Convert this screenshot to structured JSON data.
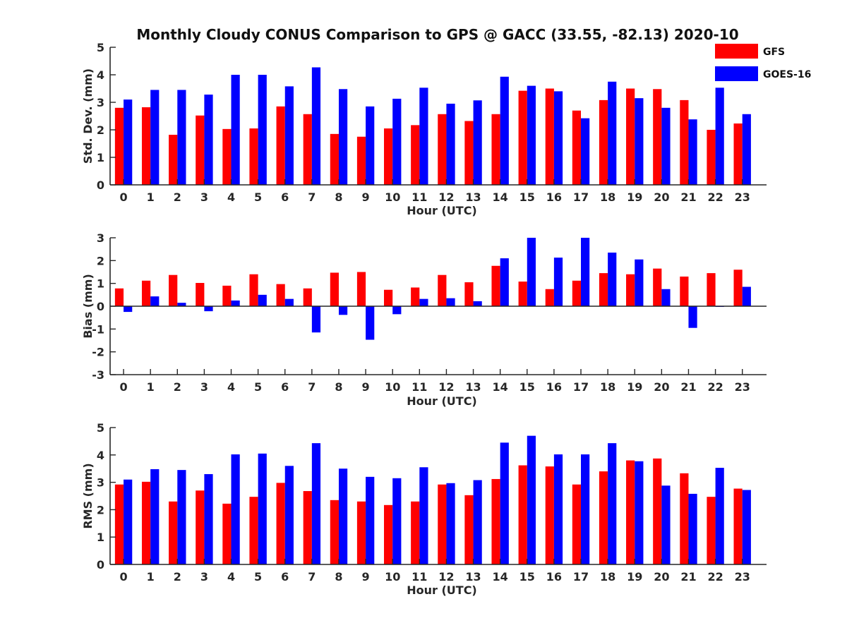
{
  "title": "Monthly Cloudy CONUS Comparison to GPS @ GACC (33.55, -82.13) 2020-10",
  "legend": {
    "position": "top-right",
    "items": [
      {
        "name": "GFS",
        "color": "#ff0000"
      },
      {
        "name": "GOES-16",
        "color": "#0000ff"
      }
    ]
  },
  "chart_data": [
    {
      "type": "bar",
      "xlabel": "Hour (UTC)",
      "ylabel": "Std. Dev. (mm)",
      "ylim": [
        0,
        5
      ],
      "yticks": [
        "0",
        "1",
        "2",
        "3",
        "4",
        "5"
      ],
      "categories": [
        "0",
        "1",
        "2",
        "3",
        "4",
        "5",
        "6",
        "7",
        "8",
        "9",
        "10",
        "11",
        "12",
        "13",
        "14",
        "15",
        "16",
        "17",
        "18",
        "19",
        "20",
        "21",
        "22",
        "23"
      ],
      "series": [
        {
          "name": "GFS",
          "color": "#ff0000",
          "values": [
            2.8,
            2.82,
            1.82,
            2.52,
            2.03,
            2.05,
            2.85,
            2.57,
            1.85,
            1.75,
            2.05,
            2.17,
            2.57,
            2.32,
            2.57,
            3.42,
            3.5,
            2.7,
            3.08,
            3.5,
            3.48,
            3.08,
            2.0,
            2.23
          ]
        },
        {
          "name": "GOES-16",
          "color": "#0000ff",
          "values": [
            3.1,
            3.45,
            3.45,
            3.28,
            4.0,
            4.0,
            3.58,
            4.27,
            3.48,
            2.85,
            3.13,
            3.53,
            2.95,
            3.07,
            3.93,
            3.6,
            3.4,
            2.42,
            3.75,
            3.15,
            2.8,
            2.38,
            3.53,
            2.57
          ]
        }
      ]
    },
    {
      "type": "bar",
      "xlabel": "Hour (UTC)",
      "ylabel": "Bias (mm)",
      "ylim": [
        -3,
        3
      ],
      "yticks": [
        "-3",
        "-2",
        "-1",
        "0",
        "1",
        "2",
        "3"
      ],
      "categories": [
        "0",
        "1",
        "2",
        "3",
        "4",
        "5",
        "6",
        "7",
        "8",
        "9",
        "10",
        "11",
        "12",
        "13",
        "14",
        "15",
        "16",
        "17",
        "18",
        "19",
        "20",
        "21",
        "22",
        "23"
      ],
      "series": [
        {
          "name": "GFS",
          "color": "#ff0000",
          "values": [
            0.78,
            1.12,
            1.37,
            1.02,
            0.9,
            1.4,
            0.97,
            0.78,
            1.47,
            1.5,
            0.72,
            0.82,
            1.37,
            1.05,
            1.77,
            1.08,
            0.75,
            1.12,
            1.45,
            1.4,
            1.65,
            1.3,
            1.45,
            1.6
          ]
        },
        {
          "name": "GOES-16",
          "color": "#0000ff",
          "values": [
            -0.25,
            0.43,
            0.15,
            -0.22,
            0.25,
            0.5,
            0.32,
            -1.15,
            -0.38,
            -1.47,
            -0.35,
            0.32,
            0.35,
            0.22,
            2.1,
            3.0,
            2.13,
            3.0,
            2.35,
            2.05,
            0.75,
            -0.95,
            -0.03,
            0.85
          ]
        }
      ]
    },
    {
      "type": "bar",
      "xlabel": "Hour (UTC)",
      "ylabel": "RMS (mm)",
      "ylim": [
        0,
        5
      ],
      "yticks": [
        "0",
        "1",
        "2",
        "3",
        "4",
        "5"
      ],
      "categories": [
        "0",
        "1",
        "2",
        "3",
        "4",
        "5",
        "6",
        "7",
        "8",
        "9",
        "10",
        "11",
        "12",
        "13",
        "14",
        "15",
        "16",
        "17",
        "18",
        "19",
        "20",
        "21",
        "22",
        "23"
      ],
      "series": [
        {
          "name": "GFS",
          "color": "#ff0000",
          "values": [
            2.92,
            3.02,
            2.3,
            2.7,
            2.22,
            2.47,
            2.98,
            2.68,
            2.35,
            2.3,
            2.17,
            2.3,
            2.92,
            2.53,
            3.12,
            3.62,
            3.58,
            2.92,
            3.4,
            3.8,
            3.87,
            3.33,
            2.47,
            2.77
          ]
        },
        {
          "name": "GOES-16",
          "color": "#0000ff",
          "values": [
            3.1,
            3.48,
            3.45,
            3.3,
            4.02,
            4.05,
            3.6,
            4.43,
            3.5,
            3.2,
            3.15,
            3.55,
            2.97,
            3.08,
            4.45,
            4.7,
            4.02,
            4.02,
            4.43,
            3.77,
            2.88,
            2.58,
            3.53,
            2.72
          ]
        }
      ]
    }
  ]
}
